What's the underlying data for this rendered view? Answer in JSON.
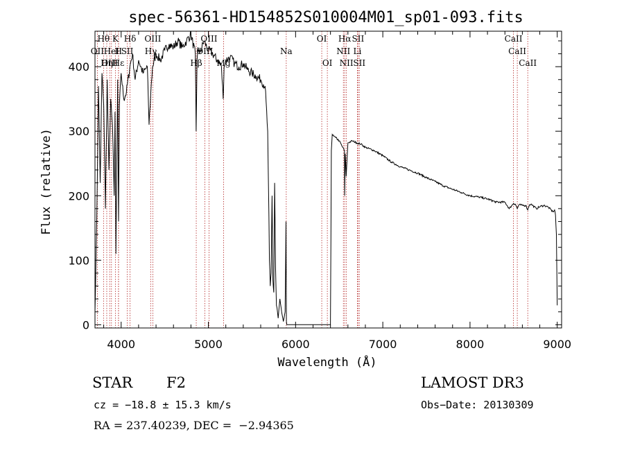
{
  "chart_data": {
    "type": "line",
    "title": "spec-56361-HD154852S010004M01_sp01-093.fits",
    "xlabel": "Wavelength (Å)",
    "ylabel": "Flux (relative)",
    "xlim": [
      3700,
      9050
    ],
    "ylim": [
      -5,
      455
    ],
    "xticks": [
      4000,
      5000,
      6000,
      7000,
      8000,
      9000
    ],
    "yticks": [
      0,
      100,
      200,
      300,
      400
    ],
    "series": [
      {
        "name": "flux",
        "x": [
          3700,
          3720,
          3740,
          3760,
          3780,
          3800,
          3820,
          3840,
          3860,
          3880,
          3900,
          3920,
          3930,
          3940,
          3960,
          3970,
          3980,
          4000,
          4030,
          4060,
          4100,
          4130,
          4160,
          4200,
          4250,
          4300,
          4320,
          4340,
          4360,
          4400,
          4450,
          4500,
          4550,
          4600,
          4650,
          4700,
          4750,
          4800,
          4850,
          4860,
          4870,
          4880,
          4900,
          4950,
          5000,
          5050,
          5100,
          5150,
          5170,
          5180,
          5200,
          5250,
          5300,
          5350,
          5400,
          5450,
          5500,
          5550,
          5600,
          5650,
          5680,
          5700,
          5710,
          5720,
          5730,
          5740,
          5750,
          5760,
          5770,
          5780,
          5800,
          5820,
          5840,
          5860,
          5880,
          5890,
          5895,
          5900,
          5910,
          5940,
          6000,
          6100,
          6200,
          6300,
          6380,
          6400,
          6410,
          6420,
          6440,
          6460,
          6500,
          6540,
          6560,
          6563,
          6570,
          6580,
          6600,
          6650,
          6700,
          6750,
          6800,
          6900,
          7000,
          7100,
          7200,
          7300,
          7400,
          7500,
          7600,
          7700,
          7800,
          7900,
          8000,
          8100,
          8200,
          8300,
          8400,
          8450,
          8498,
          8520,
          8542,
          8560,
          8600,
          8640,
          8662,
          8680,
          8700,
          8760,
          8800,
          8850,
          8900,
          8950,
          8970,
          8980,
          8990,
          9000
        ],
        "y": [
          20,
          160,
          370,
          220,
          390,
          340,
          180,
          380,
          240,
          350,
          310,
          200,
          330,
          110,
          380,
          160,
          340,
          390,
          350,
          360,
          400,
          420,
          380,
          410,
          390,
          400,
          310,
          360,
          400,
          420,
          410,
          425,
          435,
          430,
          440,
          430,
          440,
          450,
          420,
          300,
          410,
          430,
          420,
          440,
          425,
          420,
          410,
          400,
          350,
          400,
          410,
          415,
          405,
          400,
          405,
          395,
          390,
          385,
          380,
          370,
          300,
          100,
          60,
          80,
          200,
          70,
          50,
          220,
          90,
          30,
          10,
          40,
          20,
          5,
          20,
          160,
          5,
          0,
          0,
          0,
          0,
          0,
          0,
          0,
          0,
          0,
          270,
          295,
          292,
          290,
          285,
          275,
          270,
          200,
          265,
          230,
          282,
          285,
          282,
          280,
          275,
          270,
          262,
          252,
          245,
          240,
          235,
          228,
          222,
          215,
          210,
          205,
          200,
          198,
          195,
          190,
          190,
          180,
          188,
          187,
          180,
          186,
          185,
          185,
          178,
          186,
          187,
          180,
          183,
          185,
          182,
          175,
          178,
          170,
          140,
          30
        ]
      }
    ],
    "lines": [
      {
        "label": "Hθ",
        "x": 3798,
        "row": 0
      },
      {
        "label": "OII",
        "x": 3727,
        "row": 1
      },
      {
        "label": "OIII",
        "x": 3869,
        "row": 2
      },
      {
        "label": "K",
        "x": 3934,
        "row": 0
      },
      {
        "label": "H",
        "x": 3969,
        "row": 1
      },
      {
        "label": "HeI",
        "x": 3889,
        "row": 1
      },
      {
        "label": "SII",
        "x": 4070,
        "row": 1
      },
      {
        "label": "Hη",
        "x": 3835,
        "row": 2
      },
      {
        "label": "Hε",
        "x": 3970,
        "row": 2
      },
      {
        "label": "Hδ",
        "x": 4102,
        "row": 0
      },
      {
        "label": "OIII",
        "x": 4363,
        "row": 0
      },
      {
        "label": "Hγ",
        "x": 4340,
        "row": 1
      },
      {
        "label": "OIII",
        "x": 5007,
        "row": 0
      },
      {
        "label": "OIII",
        "x": 4959,
        "row": 1
      },
      {
        "label": "Hβ",
        "x": 4861,
        "row": 2
      },
      {
        "label": "Mg",
        "x": 5175,
        "row": 2
      },
      {
        "label": "Na",
        "x": 5893,
        "row": 1
      },
      {
        "label": "OI",
        "x": 6300,
        "row": 0
      },
      {
        "label": "OI",
        "x": 6364,
        "row": 2
      },
      {
        "label": "Hα",
        "x": 6563,
        "row": 0
      },
      {
        "label": "NII",
        "x": 6548,
        "row": 1
      },
      {
        "label": "NII",
        "x": 6583,
        "row": 2
      },
      {
        "label": "SII",
        "x": 6716,
        "row": 0
      },
      {
        "label": "Li",
        "x": 6708,
        "row": 1
      },
      {
        "label": "SII",
        "x": 6731,
        "row": 2
      },
      {
        "label": "CaII",
        "x": 8498,
        "row": 0
      },
      {
        "label": "CaII",
        "x": 8542,
        "row": 1
      },
      {
        "label": "CaII",
        "x": 8662,
        "row": 2
      }
    ],
    "grid": false
  },
  "info": {
    "class_label": "STAR",
    "subclass": "F2",
    "survey": "LAMOST DR3",
    "cz": "cz = −18.8 ± 15.3 km/s",
    "obs_date": "Obs−Date: 20130309",
    "coords": "RA = 237.40239, DEC =  −2.94365"
  },
  "colors": {
    "line_marker": "#b22222",
    "spectrum": "#000000"
  }
}
